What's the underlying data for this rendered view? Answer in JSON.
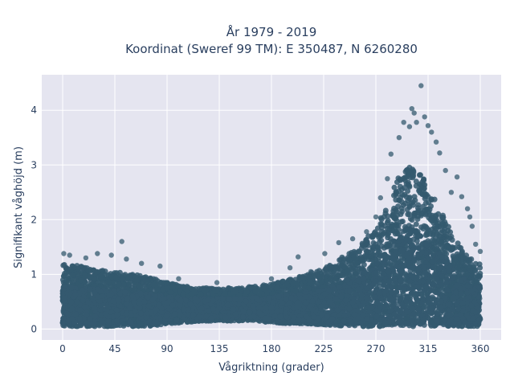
{
  "chart_data": {
    "type": "scatter",
    "title_line1": "År 1979 - 2019",
    "title_line2": "Koordinat (Sweref 99 TM): E 350487, N 6260280",
    "xlabel": "Vågriktning (grader)",
    "ylabel": "Signifikant våghöjd (m)",
    "xlim": [
      -18,
      378
    ],
    "ylim": [
      -0.2,
      4.65
    ],
    "xticks": [
      0,
      45,
      90,
      135,
      180,
      225,
      270,
      315,
      360
    ],
    "yticks": [
      0,
      1,
      2,
      3,
      4
    ],
    "grid": true,
    "marker_color": "#34596f",
    "background_color": "#e5e5f0",
    "grid_color": "#ffffff",
    "density_profile": {
      "x": [
        0,
        15,
        30,
        45,
        60,
        75,
        90,
        105,
        120,
        135,
        150,
        165,
        180,
        195,
        210,
        225,
        240,
        255,
        270,
        280,
        290,
        300,
        310,
        320,
        330,
        340,
        350,
        360
      ],
      "upper": [
        1.2,
        1.15,
        1.1,
        1.05,
        1.0,
        0.95,
        0.85,
        0.78,
        0.75,
        0.75,
        0.75,
        0.78,
        0.82,
        0.9,
        1.0,
        1.1,
        1.3,
        1.5,
        1.85,
        2.3,
        2.8,
        3.0,
        2.8,
        2.4,
        2.0,
        1.6,
        1.3,
        1.2
      ],
      "lower": [
        0.05,
        0.05,
        0.05,
        0.05,
        0.05,
        0.05,
        0.1,
        0.12,
        0.15,
        0.15,
        0.15,
        0.15,
        0.12,
        0.1,
        0.1,
        0.08,
        0.06,
        0.05,
        0.05,
        0.05,
        0.05,
        0.05,
        0.05,
        0.05,
        0.05,
        0.05,
        0.05,
        0.05
      ]
    },
    "outliers": [
      {
        "x": 1,
        "y": 1.38
      },
      {
        "x": 6,
        "y": 1.35
      },
      {
        "x": 20,
        "y": 1.3
      },
      {
        "x": 30,
        "y": 1.38
      },
      {
        "x": 42,
        "y": 1.35
      },
      {
        "x": 51,
        "y": 1.6
      },
      {
        "x": 55,
        "y": 1.28
      },
      {
        "x": 68,
        "y": 1.2
      },
      {
        "x": 84,
        "y": 1.15
      },
      {
        "x": 100,
        "y": 0.92
      },
      {
        "x": 133,
        "y": 0.85
      },
      {
        "x": 180,
        "y": 0.92
      },
      {
        "x": 196,
        "y": 1.12
      },
      {
        "x": 203,
        "y": 1.32
      },
      {
        "x": 214,
        "y": 1.05
      },
      {
        "x": 226,
        "y": 1.38
      },
      {
        "x": 238,
        "y": 1.58
      },
      {
        "x": 250,
        "y": 1.65
      },
      {
        "x": 262,
        "y": 1.78
      },
      {
        "x": 270,
        "y": 2.05
      },
      {
        "x": 274,
        "y": 2.4
      },
      {
        "x": 280,
        "y": 2.75
      },
      {
        "x": 283,
        "y": 3.2
      },
      {
        "x": 290,
        "y": 3.5
      },
      {
        "x": 294,
        "y": 3.78
      },
      {
        "x": 299,
        "y": 3.7
      },
      {
        "x": 301,
        "y": 4.03
      },
      {
        "x": 303,
        "y": 3.95
      },
      {
        "x": 305,
        "y": 3.78
      },
      {
        "x": 309,
        "y": 4.45
      },
      {
        "x": 312,
        "y": 3.88
      },
      {
        "x": 315,
        "y": 3.72
      },
      {
        "x": 318,
        "y": 3.6
      },
      {
        "x": 322,
        "y": 3.42
      },
      {
        "x": 325,
        "y": 3.22
      },
      {
        "x": 330,
        "y": 2.9
      },
      {
        "x": 335,
        "y": 2.5
      },
      {
        "x": 340,
        "y": 2.78
      },
      {
        "x": 344,
        "y": 2.42
      },
      {
        "x": 349,
        "y": 2.2
      },
      {
        "x": 351,
        "y": 2.05
      },
      {
        "x": 353,
        "y": 1.88
      },
      {
        "x": 356,
        "y": 1.55
      },
      {
        "x": 360,
        "y": 1.42
      }
    ]
  }
}
